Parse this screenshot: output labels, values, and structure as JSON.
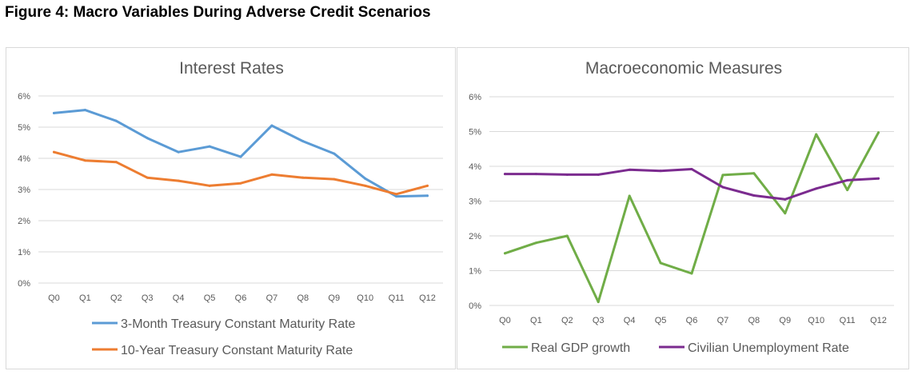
{
  "figure_title": "Figure 4: Macro Variables During Adverse Credit Scenarios",
  "colors": {
    "blue": "#5b9bd5",
    "orange": "#ed7d31",
    "green": "#70ad47",
    "purple": "#7b2b8f",
    "grid": "#d9d9d9",
    "text": "#595959"
  },
  "chart_data": [
    {
      "type": "line",
      "title": "Interest Rates",
      "categories": [
        "Q0",
        "Q1",
        "Q2",
        "Q3",
        "Q4",
        "Q5",
        "Q6",
        "Q7",
        "Q8",
        "Q9",
        "Q10",
        "Q11",
        "Q12"
      ],
      "ylim": [
        0,
        6
      ],
      "yticks": [
        "0%",
        "1%",
        "2%",
        "3%",
        "4%",
        "5%",
        "6%"
      ],
      "grid": true,
      "legend_position": "bottom",
      "series": [
        {
          "name": "3-Month Treasury Constant Maturity Rate",
          "color": "#5b9bd5",
          "values": [
            5.45,
            5.55,
            5.2,
            4.65,
            4.2,
            4.38,
            4.05,
            5.05,
            4.55,
            4.15,
            3.35,
            2.78,
            2.8
          ]
        },
        {
          "name": "10-Year Treasury Constant Maturity Rate",
          "color": "#ed7d31",
          "values": [
            4.2,
            3.93,
            3.88,
            3.38,
            3.28,
            3.12,
            3.2,
            3.48,
            3.38,
            3.33,
            3.12,
            2.85,
            3.12
          ]
        }
      ]
    },
    {
      "type": "line",
      "title": "Macroeconomic Measures",
      "categories": [
        "Q0",
        "Q1",
        "Q2",
        "Q3",
        "Q4",
        "Q5",
        "Q6",
        "Q7",
        "Q8",
        "Q9",
        "Q10",
        "Q11",
        "Q12"
      ],
      "ylim": [
        0,
        6
      ],
      "yticks": [
        "0%",
        "1%",
        "2%",
        "3%",
        "4%",
        "5%",
        "6%"
      ],
      "grid": true,
      "legend_position": "bottom",
      "series": [
        {
          "name": "Real GDP growth",
          "color": "#70ad47",
          "values": [
            1.5,
            1.8,
            2.0,
            0.1,
            3.15,
            1.22,
            0.92,
            3.75,
            3.8,
            2.65,
            4.92,
            3.32,
            4.97
          ]
        },
        {
          "name": "Civilian Unemployment Rate",
          "color": "#7b2b8f",
          "values": [
            3.78,
            3.78,
            3.76,
            3.76,
            3.9,
            3.87,
            3.92,
            3.4,
            3.16,
            3.05,
            3.36,
            3.6,
            3.65
          ]
        }
      ]
    }
  ]
}
